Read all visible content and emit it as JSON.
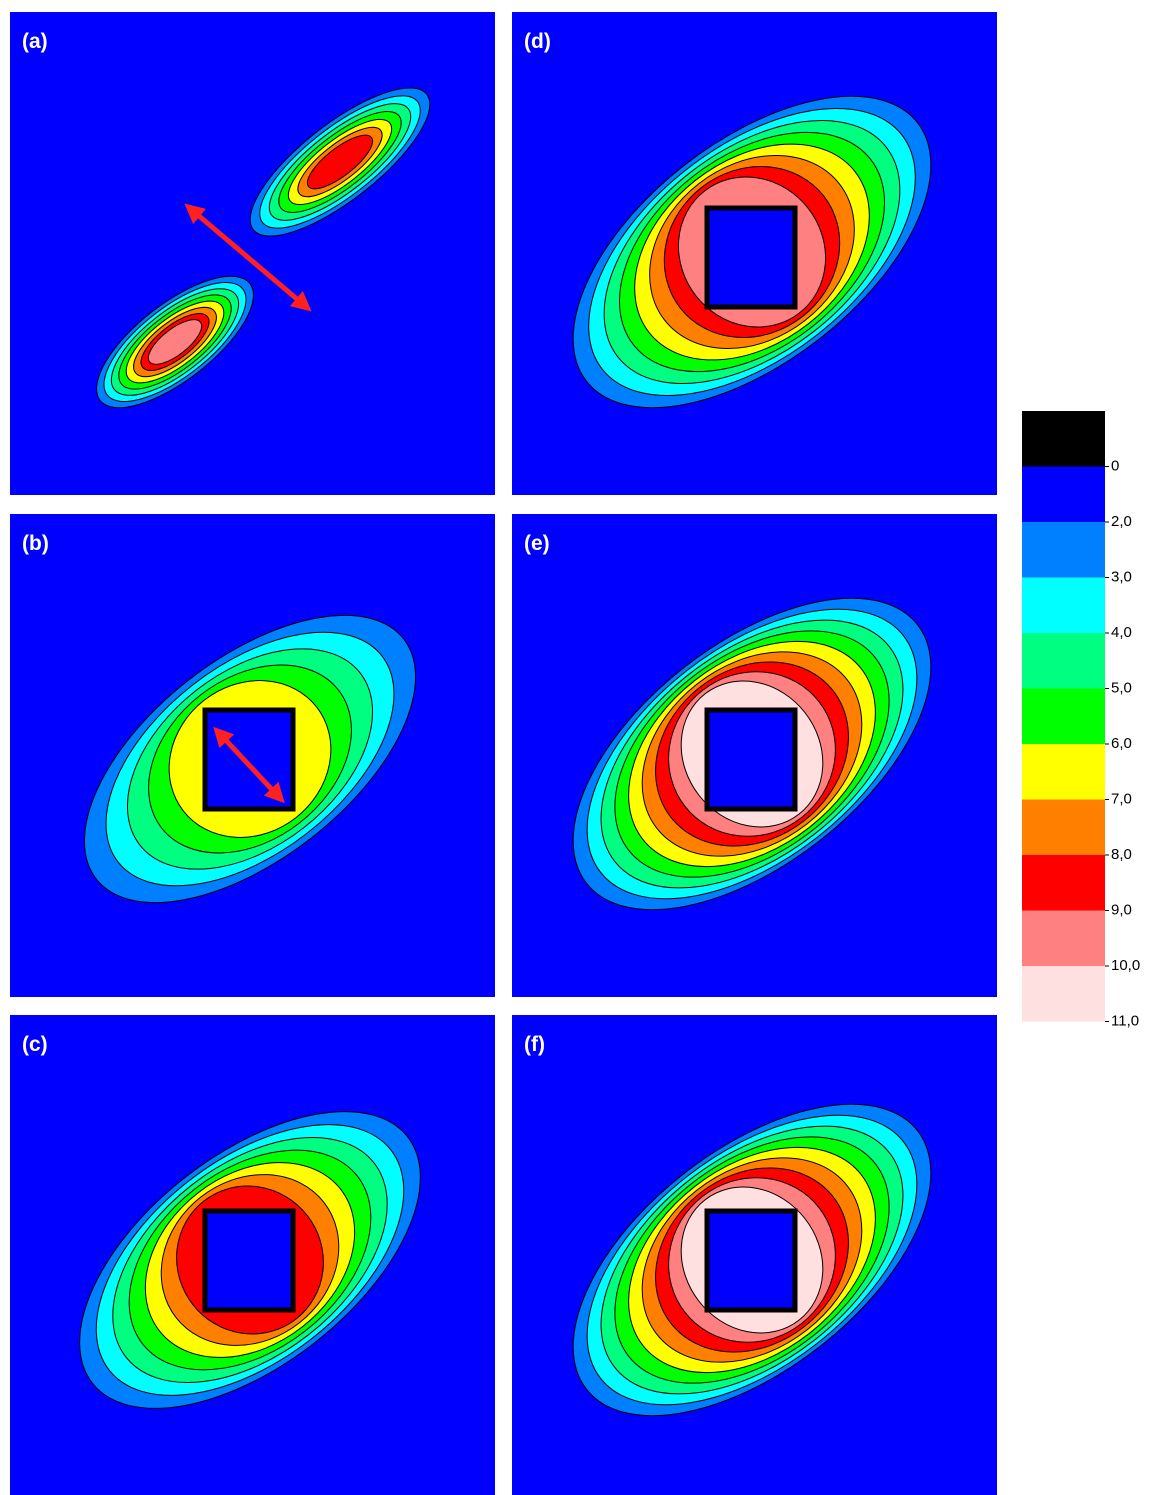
{
  "panels": [
    {
      "label": "(a)"
    },
    {
      "label": "(b)"
    },
    {
      "label": "(c)"
    },
    {
      "label": "(d)"
    },
    {
      "label": "(e)"
    },
    {
      "label": "(f)"
    }
  ],
  "colorbar": {
    "colors": [
      "#000000",
      "#0000ff",
      "#0080ff",
      "#00ffff",
      "#00ff80",
      "#00ff00",
      "#ffff00",
      "#ff8000",
      "#ff0000",
      "#ff8080",
      "#ffe0e0"
    ],
    "levels": [
      {
        "value": 0,
        "label": "0"
      },
      {
        "value": 2,
        "label": "2,0"
      },
      {
        "value": 3,
        "label": "3,0"
      },
      {
        "value": 4,
        "label": "4,0"
      },
      {
        "value": 5,
        "label": "5,0"
      },
      {
        "value": 6,
        "label": "6,0"
      },
      {
        "value": 7,
        "label": "7,0"
      },
      {
        "value": 8,
        "label": "8,0"
      },
      {
        "value": 9,
        "label": "9,0"
      },
      {
        "value": 10,
        "label": "10,0"
      },
      {
        "value": 11,
        "label": "11,0"
      }
    ]
  }
}
